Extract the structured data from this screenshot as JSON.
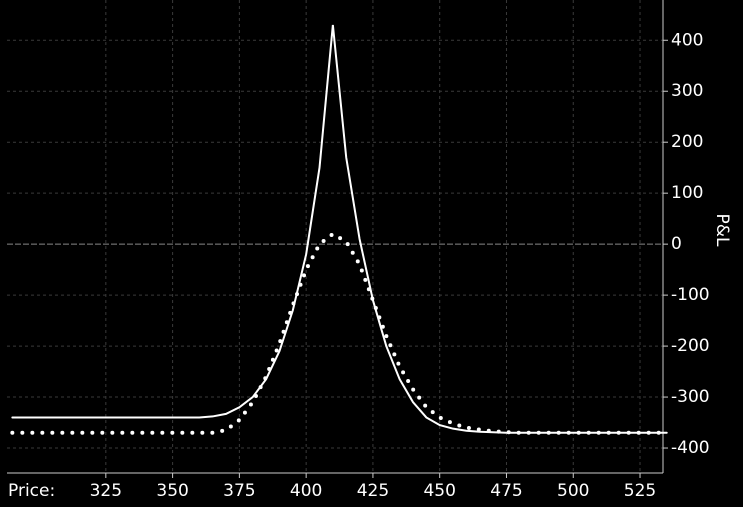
{
  "chart_data": {
    "type": "line",
    "x_label": "Price:",
    "y_label": "P&L",
    "x": [
      290,
      295,
      300,
      305,
      310,
      315,
      320,
      325,
      330,
      335,
      340,
      345,
      350,
      355,
      360,
      365,
      370,
      375,
      380,
      385,
      390,
      395,
      400,
      405,
      410,
      415,
      420,
      425,
      430,
      435,
      440,
      445,
      450,
      455,
      460,
      465,
      470,
      475,
      480,
      485,
      490,
      495,
      500,
      505,
      510,
      515,
      520,
      525,
      530,
      535
    ],
    "series": [
      {
        "color": "#ffffff",
        "style": "solid",
        "values": [
          -340,
          -340,
          -340,
          -340,
          -340,
          -340,
          -340,
          -340,
          -340,
          -340,
          -340,
          -340,
          -340,
          -340,
          -340,
          -338,
          -333,
          -320,
          -300,
          -265,
          -210,
          -130,
          -20,
          150,
          430,
          170,
          10,
          -110,
          -200,
          -265,
          -310,
          -340,
          -355,
          -362,
          -366,
          -368,
          -369,
          -370,
          -370,
          -370,
          -370,
          -370,
          -370,
          -370,
          -370,
          -370,
          -370,
          -370,
          -370,
          -370
        ]
      },
      {
        "color": "#ffffff",
        "style": "dotted",
        "values": [
          -370,
          -370,
          -370,
          -370,
          -370,
          -370,
          -370,
          -370,
          -370,
          -370,
          -370,
          -370,
          -370,
          -370,
          -370,
          -370,
          -365,
          -345,
          -310,
          -260,
          -195,
          -120,
          -50,
          0,
          20,
          5,
          -40,
          -110,
          -180,
          -240,
          -285,
          -320,
          -340,
          -352,
          -360,
          -364,
          -367,
          -369,
          -370,
          -370,
          -370,
          -370,
          -370,
          -370,
          -370,
          -370,
          -370,
          -370,
          -370,
          -370
        ]
      }
    ],
    "xlim": [
      288,
      533.6
    ],
    "xticks": [
      325,
      350,
      375,
      400,
      425,
      450,
      475,
      500,
      525
    ],
    "ylim": [
      -449,
      479
    ],
    "yticks": [
      400,
      300,
      200,
      100,
      0,
      -100,
      -200,
      -300,
      -400
    ],
    "grid": true
  }
}
